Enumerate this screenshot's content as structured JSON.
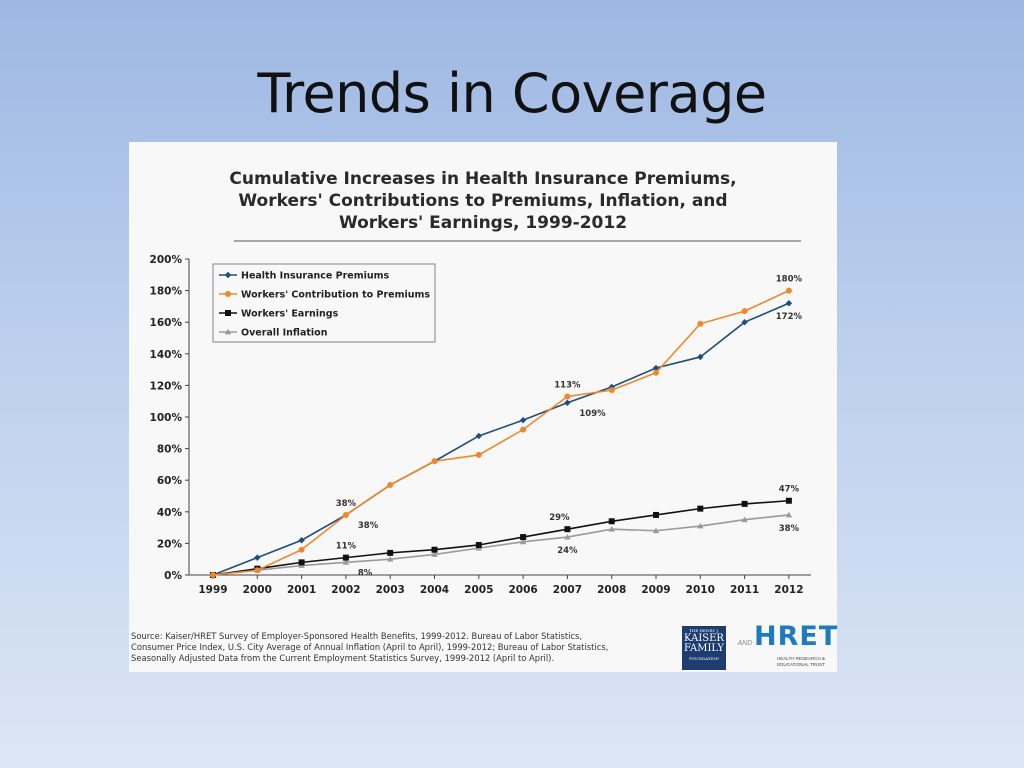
{
  "slide": {
    "title": "Trends in Coverage"
  },
  "chart_data": {
    "type": "line",
    "title_lines": [
      "Cumulative Increases in Health Insurance Premiums,",
      "Workers' Contributions to Premiums, Inflation, and",
      "Workers' Earnings, 1999-2012"
    ],
    "categories": [
      "1999",
      "2000",
      "2001",
      "2002",
      "2003",
      "2004",
      "2005",
      "2006",
      "2007",
      "2008",
      "2009",
      "2010",
      "2011",
      "2012"
    ],
    "ylim": [
      0,
      200
    ],
    "yticks": [
      0,
      20,
      40,
      60,
      80,
      100,
      120,
      140,
      160,
      180,
      200
    ],
    "ytick_labels": [
      "0%",
      "20%",
      "40%",
      "60%",
      "80%",
      "100%",
      "120%",
      "140%",
      "160%",
      "180%",
      "200%"
    ],
    "xlabel": "",
    "ylabel": "",
    "legend_position": "top-left",
    "series": [
      {
        "name": "Health Insurance Premiums",
        "color": "#1f4e79",
        "marker": "diamond",
        "values": [
          0,
          11,
          22,
          38,
          57,
          72,
          88,
          98,
          109,
          119,
          131,
          138,
          160,
          172
        ]
      },
      {
        "name": "Workers' Contribution to Premiums",
        "color": "#f0882a",
        "marker": "circle",
        "values": [
          0,
          3,
          16,
          38,
          57,
          72,
          76,
          92,
          113,
          117,
          128,
          159,
          167,
          180
        ]
      },
      {
        "name": "Workers' Earnings",
        "color": "#111111",
        "marker": "square",
        "values": [
          0,
          4,
          8,
          11,
          14,
          16,
          19,
          24,
          29,
          34,
          38,
          42,
          45,
          47
        ]
      },
      {
        "name": "Overall Inflation",
        "color": "#9a9a9a",
        "marker": "triangle",
        "values": [
          0,
          3,
          6,
          8,
          10,
          13,
          17,
          21,
          24,
          29,
          28,
          31,
          35,
          38
        ]
      }
    ],
    "annotations": [
      {
        "text": "38%",
        "series": 0,
        "index": 3,
        "pos": "above"
      },
      {
        "text": "38%",
        "series": 1,
        "index": 3,
        "pos": "below-right"
      },
      {
        "text": "113%",
        "series": 1,
        "index": 8,
        "pos": "above"
      },
      {
        "text": "109%",
        "series": 0,
        "index": 8,
        "pos": "below-right"
      },
      {
        "text": "180%",
        "series": 1,
        "index": 13,
        "pos": "above"
      },
      {
        "text": "172%",
        "series": 0,
        "index": 13,
        "pos": "below"
      },
      {
        "text": "11%",
        "series": 2,
        "index": 3,
        "pos": "above"
      },
      {
        "text": "8%",
        "series": 3,
        "index": 3,
        "pos": "below-right"
      },
      {
        "text": "29%",
        "series": 2,
        "index": 8,
        "pos": "above-left"
      },
      {
        "text": "24%",
        "series": 3,
        "index": 8,
        "pos": "below"
      },
      {
        "text": "47%",
        "series": 2,
        "index": 13,
        "pos": "above"
      },
      {
        "text": "38%",
        "series": 3,
        "index": 13,
        "pos": "below"
      }
    ]
  },
  "source": {
    "lines": [
      "Source:  Kaiser/HRET Survey of Employer-Sponsored Health Benefits, 1999-2012.  Bureau of Labor Statistics,",
      "Consumer Price Index, U.S. City Average of Annual Inflation (April to April), 1999-2012; Bureau of Labor Statistics,",
      "Seasonally Adjusted Data from the Current Employment Statistics Survey, 1999-2012 (April to April)."
    ]
  },
  "logos": {
    "kff_small": "THE HENRY J.",
    "kff_line1": "KAISER",
    "kff_line2": "FAMILY",
    "kff_line3": "FOUNDATION",
    "and": "AND",
    "hret": "HRET",
    "hret_sub_1": "HEALTH RESEARCH &",
    "hret_sub_2": "EDUCATIONAL TRUST"
  }
}
